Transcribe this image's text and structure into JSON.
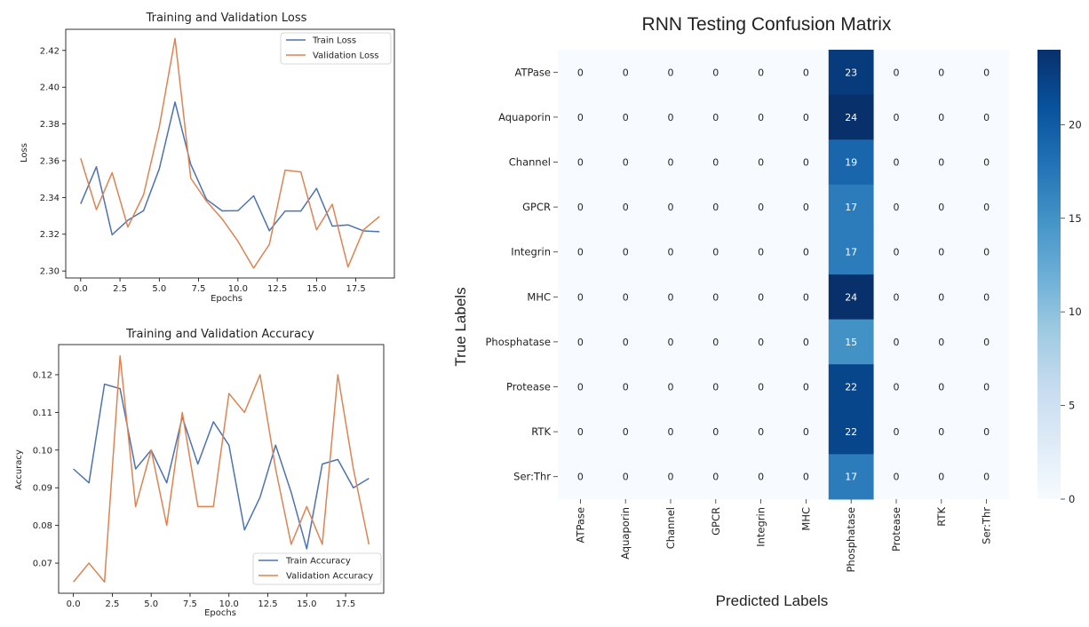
{
  "chart_data": [
    {
      "type": "line",
      "title": "Training and Validation Loss",
      "xlabel": "Epochs",
      "ylabel": "Loss",
      "xlim": [
        -0.95,
        19.95
      ],
      "ylim": [
        2.2962,
        2.4315
      ],
      "xticks": [
        "0.0",
        "2.5",
        "5.0",
        "7.5",
        "10.0",
        "12.5",
        "15.0",
        "17.5"
      ],
      "xtick_values": [
        0,
        2.5,
        5,
        7.5,
        10,
        12.5,
        15,
        17.5
      ],
      "yticks": [
        "2.30",
        "2.32",
        "2.34",
        "2.36",
        "2.38",
        "2.40",
        "2.42"
      ],
      "ytick_values": [
        2.3,
        2.32,
        2.34,
        2.36,
        2.38,
        2.4,
        2.42
      ],
      "grid": false,
      "legend": "top-right",
      "x": [
        0,
        1,
        2,
        3,
        4,
        5,
        6,
        7,
        8,
        9,
        10,
        11,
        12,
        13,
        14,
        15,
        16,
        17,
        18,
        19
      ],
      "series": [
        {
          "name": "Train Loss",
          "color": "#4c72b0",
          "values": [
            2.3365,
            2.3567,
            2.3197,
            2.3276,
            2.3328,
            2.3556,
            2.3919,
            2.358,
            2.339,
            2.3327,
            2.3328,
            2.3409,
            2.3219,
            2.3326,
            2.3326,
            2.3449,
            2.3244,
            2.3251,
            2.3218,
            2.3214
          ]
        },
        {
          "name": "Validation Loss",
          "color": "#dd8452",
          "values": [
            2.3613,
            2.3334,
            2.3535,
            2.3239,
            2.3415,
            2.3784,
            2.4265,
            2.3505,
            2.338,
            2.3283,
            2.3162,
            2.3016,
            2.3145,
            2.3549,
            2.3539,
            2.3224,
            2.3363,
            2.3022,
            2.3225,
            2.3297
          ]
        }
      ]
    },
    {
      "type": "line",
      "title": "Training and Validation Accuracy",
      "xlabel": "Epochs",
      "ylabel": "Accuracy",
      "xlim": [
        -0.95,
        19.95
      ],
      "ylim": [
        0.062,
        0.128
      ],
      "xticks": [
        "0.0",
        "2.5",
        "5.0",
        "7.5",
        "10.0",
        "12.5",
        "15.0",
        "17.5"
      ],
      "xtick_values": [
        0,
        2.5,
        5,
        7.5,
        10,
        12.5,
        15,
        17.5
      ],
      "yticks": [
        "0.07",
        "0.08",
        "0.09",
        "0.10",
        "0.11",
        "0.12"
      ],
      "ytick_values": [
        0.07,
        0.08,
        0.09,
        0.1,
        0.11,
        0.12
      ],
      "grid": false,
      "legend": "bottom-right",
      "x": [
        0,
        1,
        2,
        3,
        4,
        5,
        6,
        7,
        8,
        9,
        10,
        11,
        12,
        13,
        14,
        15,
        16,
        17,
        18,
        19
      ],
      "series": [
        {
          "name": "Train Accuracy",
          "color": "#4c72b0",
          "values": [
            0.095,
            0.0913,
            0.1175,
            0.1163,
            0.095,
            0.1,
            0.0913,
            0.1088,
            0.0963,
            0.1075,
            0.1013,
            0.0788,
            0.0875,
            0.1013,
            0.0888,
            0.0738,
            0.0963,
            0.0975,
            0.09,
            0.0925
          ]
        },
        {
          "name": "Validation Accuracy",
          "color": "#dd8452",
          "values": [
            0.065,
            0.07,
            0.065,
            0.125,
            0.085,
            0.1,
            0.08,
            0.11,
            0.085,
            0.085,
            0.115,
            0.11,
            0.12,
            0.095,
            0.075,
            0.085,
            0.075,
            0.12,
            0.095,
            0.075
          ]
        }
      ]
    },
    {
      "type": "heatmap",
      "title": "RNN Testing Confusion Matrix",
      "xlabel": "Predicted Labels",
      "ylabel": "True Labels",
      "row_labels": [
        "ATPase",
        "Aquaporin",
        "Channel",
        "GPCR",
        "Integrin",
        "MHC",
        "Phosphatase",
        "Protease",
        "RTK",
        "Ser:Thr"
      ],
      "col_labels": [
        "ATPase",
        "Aquaporin",
        "Channel",
        "GPCR",
        "Integrin",
        "MHC",
        "Phosphatase",
        "Protease",
        "RTK",
        "Ser:Thr"
      ],
      "colormap": "Blues",
      "vmin": 0,
      "vmax": 24,
      "colorbar_ticks": [
        0,
        5,
        10,
        15,
        20
      ],
      "values": [
        [
          0,
          0,
          0,
          0,
          0,
          0,
          23,
          0,
          0,
          0
        ],
        [
          0,
          0,
          0,
          0,
          0,
          0,
          24,
          0,
          0,
          0
        ],
        [
          0,
          0,
          0,
          0,
          0,
          0,
          19,
          0,
          0,
          0
        ],
        [
          0,
          0,
          0,
          0,
          0,
          0,
          17,
          0,
          0,
          0
        ],
        [
          0,
          0,
          0,
          0,
          0,
          0,
          17,
          0,
          0,
          0
        ],
        [
          0,
          0,
          0,
          0,
          0,
          0,
          24,
          0,
          0,
          0
        ],
        [
          0,
          0,
          0,
          0,
          0,
          0,
          15,
          0,
          0,
          0
        ],
        [
          0,
          0,
          0,
          0,
          0,
          0,
          22,
          0,
          0,
          0
        ],
        [
          0,
          0,
          0,
          0,
          0,
          0,
          22,
          0,
          0,
          0
        ],
        [
          0,
          0,
          0,
          0,
          0,
          0,
          17,
          0,
          0,
          0
        ]
      ]
    }
  ]
}
